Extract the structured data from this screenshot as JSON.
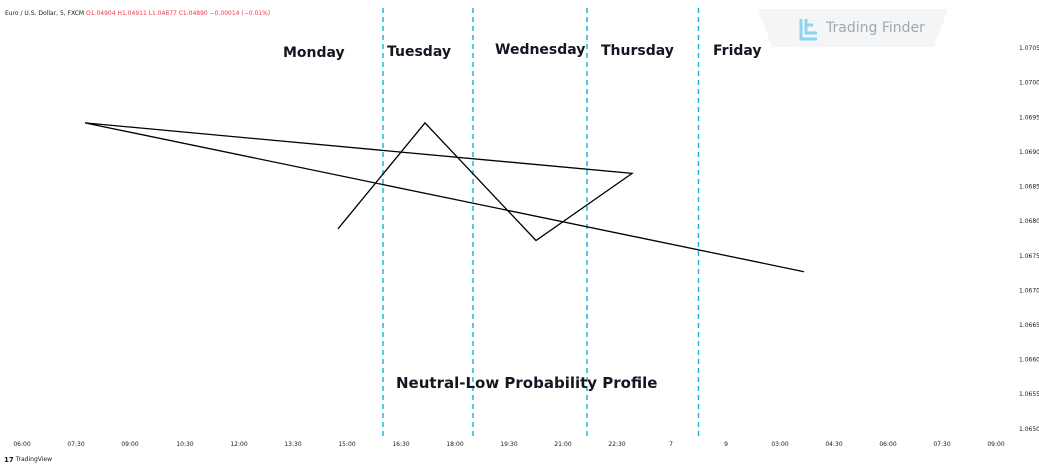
{
  "symbol_line": {
    "name": "Euro / U.S. Dollar, 5, FXCM",
    "ohlc": "O1.04904 H1.04911 L1.04877 C1.04890 −0.00014 (−0.01%)"
  },
  "brand": {
    "name": "Trading Finder",
    "logo_icon": "trading-finder-logo-icon",
    "color": "#a0a6b5",
    "accent": "#8ed3f0"
  },
  "footer": {
    "icon": "tradingview-logo-icon",
    "label": "TradingView"
  },
  "days": [
    "Monday",
    "Tuesday",
    "Wednesday",
    "Thursday",
    "Friday"
  ],
  "caption": "Neutral-Low Probability Profile",
  "colors": {
    "line": "#000000",
    "separator": "#21b6d4",
    "text": "#131722",
    "brand": "#a0a6b5"
  },
  "chart_data": {
    "type": "line",
    "title": "",
    "xlabel": "",
    "ylabel": "",
    "x_ticks": [
      "06:00",
      "07:30",
      "09:00",
      "10:30",
      "12:00",
      "13:30",
      "15:00",
      "16:30",
      "18:00",
      "19:30",
      "21:00",
      "22:30",
      "7",
      "9",
      "03:00",
      "04:30",
      "06:00",
      "07:30",
      "09:00"
    ],
    "y_ticks": [
      1.0705,
      1.07,
      1.0695,
      1.069,
      1.0685,
      1.068,
      1.0675,
      1.067,
      1.0665,
      1.066,
      1.0655,
      1.065
    ],
    "y_tick_labels": [
      "1.0705",
      "1.0700",
      "1.0695",
      "1.0690",
      "1.0685",
      "1.0680",
      "1.0675",
      "1.0670",
      "1.0665",
      "1.0660",
      "1.0655",
      "1.0650"
    ],
    "ylim": [
      1.06478,
      1.07108
    ],
    "series": [
      {
        "values": [
          {
            "x": "14:45",
            "y": 1.06789
          },
          {
            "x": "17:10",
            "y": 1.06942
          },
          {
            "x": "20:15",
            "y": 1.06772
          },
          {
            "x": "22:55",
            "y": 1.06869
          },
          {
            "x": "07:45",
            "y": 1.06942
          },
          {
            "x": "03:40",
            "y": 1.06727
          }
        ]
      }
    ],
    "day_separators": [
      "16:00",
      "18:30",
      "21:40",
      "8"
    ],
    "grid": false,
    "legend": "none"
  }
}
